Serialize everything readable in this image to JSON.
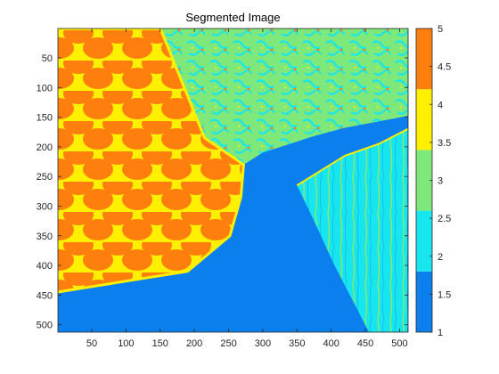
{
  "chart_data": {
    "type": "heatmap",
    "title": "Segmented Image",
    "xlabel": "",
    "ylabel": "",
    "x_ticks": [
      50,
      100,
      150,
      200,
      250,
      300,
      350,
      400,
      450,
      500
    ],
    "y_ticks": [
      50,
      100,
      150,
      200,
      250,
      300,
      350,
      400,
      450,
      500
    ],
    "xlim": [
      0.5,
      512.5
    ],
    "ylim": [
      0.5,
      512.5
    ],
    "y_direction": "reversed",
    "colorbar": {
      "range": [
        1,
        5
      ],
      "ticks": [
        1,
        1.5,
        2,
        2.5,
        3,
        3.5,
        4,
        4.5,
        5
      ],
      "levels": [
        {
          "value": 1,
          "color": "#0c7fef"
        },
        {
          "value": 2,
          "color": "#17e6ef"
        },
        {
          "value": 3,
          "color": "#7fe87a"
        },
        {
          "value": 4,
          "color": "#ffef00"
        },
        {
          "value": 5,
          "color": "#ff7f0e"
        }
      ]
    },
    "regions": [
      {
        "label": 5,
        "description": "fish-scale pattern left",
        "points": [
          [
            0,
            0
          ],
          [
            150,
            0
          ],
          [
            215,
            185
          ],
          [
            272,
            230
          ],
          [
            268,
            285
          ],
          [
            252,
            350
          ],
          [
            190,
            410
          ],
          [
            0,
            445
          ]
        ]
      },
      {
        "label": 3,
        "description": "textured upper right",
        "points": [
          [
            150,
            0
          ],
          [
            512,
            0
          ],
          [
            512,
            148
          ],
          [
            420,
            168
          ],
          [
            375,
            182
          ],
          [
            300,
            210
          ],
          [
            272,
            230
          ],
          [
            215,
            185
          ]
        ]
      },
      {
        "label": 1,
        "description": "smooth lower region",
        "points": [
          [
            0,
            445
          ],
          [
            190,
            410
          ],
          [
            252,
            350
          ],
          [
            268,
            285
          ],
          [
            272,
            230
          ],
          [
            300,
            210
          ],
          [
            375,
            182
          ],
          [
            420,
            168
          ],
          [
            512,
            148
          ],
          [
            512,
            512
          ],
          [
            0,
            512
          ]
        ]
      },
      {
        "label": 2,
        "description": "right wedge",
        "points": [
          [
            350,
            265
          ],
          [
            420,
            215
          ],
          [
            470,
            195
          ],
          [
            512,
            170
          ],
          [
            512,
            512
          ],
          [
            455,
            512
          ],
          [
            405,
            400
          ],
          [
            375,
            325
          ]
        ]
      }
    ]
  }
}
